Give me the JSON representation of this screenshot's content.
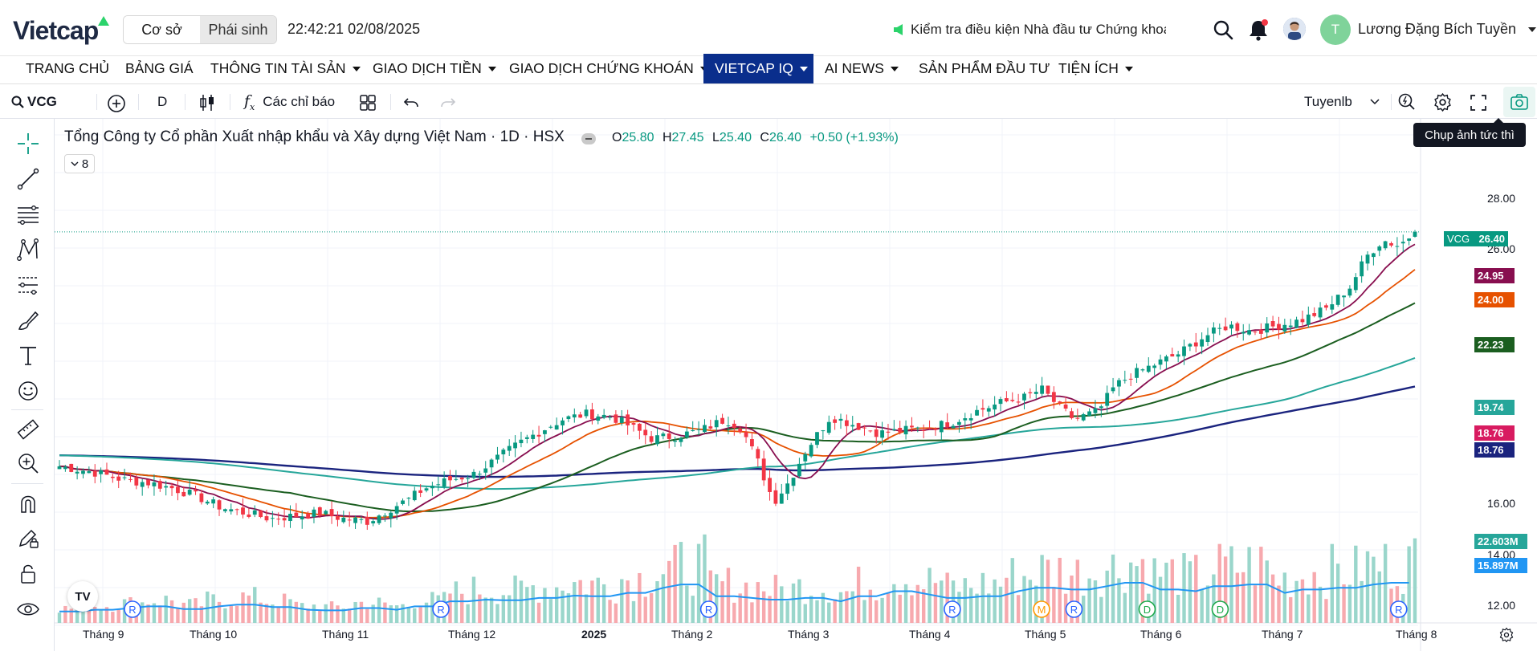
{
  "app": {
    "logo_text": "Vietcap",
    "colors": {
      "brand": "#1f2a44",
      "accent_green": "#2bd36b",
      "nav_active": "#0a2e8c",
      "up": "#089981",
      "down": "#f23645"
    }
  },
  "header": {
    "segment": {
      "options": [
        "Cơ sở",
        "Phái sinh"
      ],
      "selected": "Cơ sở"
    },
    "clock": "22:42:21 02/08/2025",
    "notice": "Kiểm tra điều kiện Nhà đầu tư Chứng khoán",
    "user_initial": "T",
    "user_name": "Lương Đặng Bích Tuyền",
    "icons": [
      "search-icon",
      "bell-icon",
      "avatar-photo",
      "chevron-down-icon"
    ]
  },
  "nav": {
    "items": [
      {
        "label": "TRANG CHỦ",
        "dropdown": false
      },
      {
        "label": "BẢNG GIÁ",
        "dropdown": false
      },
      {
        "label": "THÔNG TIN TÀI SẢN",
        "dropdown": true
      },
      {
        "label": "GIAO DỊCH TIỀN",
        "dropdown": true
      },
      {
        "label": "GIAO DỊCH CHỨNG KHOÁN",
        "dropdown": true
      },
      {
        "label": "VIETCAP IQ",
        "dropdown": true,
        "active": true
      },
      {
        "label": "AI NEWS",
        "dropdown": true
      },
      {
        "label": "SẢN PHẨM ĐẦU TƯ",
        "dropdown": false
      },
      {
        "label": "TIỆN ÍCH",
        "dropdown": true
      }
    ]
  },
  "toolbar": {
    "symbol": "VCG",
    "interval": "D",
    "indicators_label": "Các chỉ báo",
    "layout_name": "Tuyenlb",
    "tooltip": "Chụp ảnh tức thì"
  },
  "legend": {
    "title": "Tổng Công ty Cổ phần Xuất nhập khẩu và Xây dựng Việt Nam · 1D · HSX",
    "o_label": "O",
    "o": "25.80",
    "h_label": "H",
    "h": "27.45",
    "l_label": "L",
    "l": "25.40",
    "c_label": "C",
    "c": "26.40",
    "change": "+0.50 (+1.93%)",
    "collapsed_count": "8",
    "tv_logo": "TV"
  },
  "chart_data": {
    "type": "candlestick",
    "symbol": "VCG",
    "y_ticks": [
      "28.00",
      "26.00",
      "16.00",
      "14.00",
      "12.00"
    ],
    "y_range": [
      11.2,
      30.5
    ],
    "x_ticks": [
      "Tháng 9",
      "Tháng 10",
      "Tháng 11",
      "Tháng 12",
      "2025",
      "Tháng 2",
      "Tháng 3",
      "Tháng 4",
      "Tháng 5",
      "Tháng 6",
      "Tháng 7",
      "Tháng 8"
    ],
    "x_ticks_bold": [
      "2025"
    ],
    "last_price": {
      "label": "VCG",
      "value": "26.40",
      "color": "#089981"
    },
    "ma_tags": [
      {
        "value": "24.95",
        "color": "#880e4f"
      },
      {
        "value": "24.00",
        "color": "#e65100"
      },
      {
        "value": "22.23",
        "color": "#1b5e20"
      },
      {
        "value": "19.74",
        "color": "#26a69a"
      },
      {
        "value": "18.76",
        "color": "#d81b60"
      },
      {
        "value": "18.76",
        "color": "#1a237e"
      }
    ],
    "volume_tags": [
      {
        "value": "22.603M",
        "color": "#26a69a"
      },
      {
        "value": "15.897M",
        "color": "#2196f3"
      }
    ],
    "price_path": [
      [
        0,
        17.9
      ],
      [
        8,
        17.7
      ],
      [
        16,
        17.4
      ],
      [
        22,
        17.3
      ],
      [
        28,
        17.1
      ],
      [
        34,
        16.8
      ],
      [
        40,
        16.4
      ],
      [
        46,
        16.2
      ],
      [
        52,
        16.0
      ],
      [
        58,
        16.1
      ],
      [
        64,
        16.2
      ],
      [
        70,
        16.0
      ],
      [
        76,
        15.9
      ],
      [
        82,
        16.4
      ],
      [
        86,
        16.7
      ],
      [
        90,
        17.1
      ],
      [
        96,
        17.4
      ],
      [
        102,
        17.6
      ],
      [
        108,
        18.2
      ],
      [
        114,
        18.8
      ],
      [
        120,
        19.3
      ],
      [
        124,
        19.6
      ],
      [
        130,
        19.8
      ],
      [
        136,
        19.7
      ],
      [
        140,
        19.4
      ],
      [
        146,
        18.9
      ],
      [
        152,
        19.0
      ],
      [
        158,
        19.2
      ],
      [
        164,
        19.6
      ],
      [
        168,
        19.3
      ],
      [
        172,
        18.1
      ],
      [
        176,
        16.6
      ],
      [
        180,
        17.4
      ],
      [
        184,
        18.5
      ],
      [
        190,
        19.7
      ],
      [
        196,
        19.4
      ],
      [
        202,
        19.1
      ],
      [
        208,
        19.2
      ],
      [
        214,
        19.3
      ],
      [
        220,
        19.5
      ],
      [
        226,
        19.9
      ],
      [
        232,
        20.2
      ],
      [
        238,
        20.4
      ],
      [
        242,
        20.7
      ],
      [
        246,
        20.1
      ],
      [
        250,
        19.6
      ],
      [
        256,
        19.9
      ],
      [
        260,
        20.8
      ],
      [
        264,
        21.2
      ],
      [
        270,
        21.6
      ],
      [
        276,
        22.0
      ],
      [
        282,
        22.6
      ],
      [
        288,
        23.0
      ],
      [
        294,
        22.8
      ],
      [
        300,
        23.0
      ],
      [
        306,
        23.2
      ],
      [
        312,
        23.6
      ],
      [
        318,
        24.4
      ],
      [
        322,
        25.5
      ],
      [
        326,
        26.1
      ],
      [
        330,
        25.9
      ],
      [
        334,
        26.4
      ]
    ],
    "volume_levels": [
      0.15,
      0.2,
      0.25,
      0.3,
      0.22,
      0.3,
      0.35,
      0.28,
      0.2,
      0.18,
      0.25,
      0.2,
      0.3,
      0.45,
      0.5,
      0.48,
      0.55,
      0.62,
      0.6,
      0.7,
      0.85,
      0.95,
      0.6,
      0.55,
      0.5,
      0.55,
      0.45,
      0.6,
      0.75,
      0.65,
      0.55,
      0.6,
      0.75,
      0.85,
      0.8,
      0.9,
      1.0,
      0.8,
      0.75,
      0.9,
      0.95,
      0.7,
      0.8,
      0.85,
      0.95,
      1.0
    ],
    "markers": [
      {
        "label": "R",
        "x": 18,
        "color": "#2962ff"
      },
      {
        "label": "R",
        "x": 94,
        "color": "#2962ff"
      },
      {
        "label": "R",
        "x": 160,
        "color": "#2962ff"
      },
      {
        "label": "R",
        "x": 220,
        "color": "#2962ff"
      },
      {
        "label": "M",
        "x": 242,
        "color": "#ff9800"
      },
      {
        "label": "R",
        "x": 250,
        "color": "#2962ff"
      },
      {
        "label": "D",
        "x": 268,
        "color": "#1ea94b"
      },
      {
        "label": "D",
        "x": 286,
        "color": "#1ea94b"
      },
      {
        "label": "R",
        "x": 330,
        "color": "#2962ff"
      }
    ]
  }
}
